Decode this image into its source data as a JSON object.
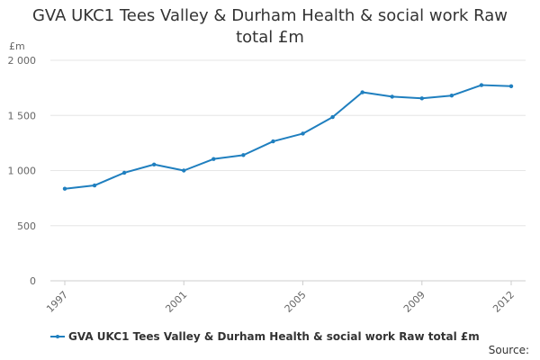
{
  "colors": {
    "series": "#1f7fbf",
    "grid": "#e6e6e6",
    "axis": "#cccccc"
  },
  "chart_data": {
    "type": "line",
    "title_line1": "GVA UKC1 Tees Valley & Durham Health & social work Raw",
    "title_line2": "total £m",
    "unit_label": "£m",
    "x": [
      1997,
      1998,
      1999,
      2000,
      2001,
      2002,
      2003,
      2004,
      2005,
      2006,
      2007,
      2008,
      2009,
      2010,
      2011,
      2012
    ],
    "x_tick_labels": [
      "1997",
      "2001",
      "2005",
      "2009",
      "2012"
    ],
    "y_tick_labels": [
      "0",
      "500",
      "1 000",
      "1 500",
      "2 000"
    ],
    "y_ticks": [
      0,
      500,
      1000,
      1500,
      2000
    ],
    "ylim": [
      0,
      2000
    ],
    "grid": true,
    "legend_position": "bottom-left",
    "series": [
      {
        "name": "GVA UKC1 Tees Valley & Durham Health & social work Raw total £m",
        "values": [
          835,
          865,
          980,
          1055,
          1000,
          1105,
          1140,
          1265,
          1335,
          1485,
          1710,
          1670,
          1655,
          1680,
          1775,
          1765
        ]
      }
    ]
  },
  "footer": {
    "source_label": "Source:"
  }
}
